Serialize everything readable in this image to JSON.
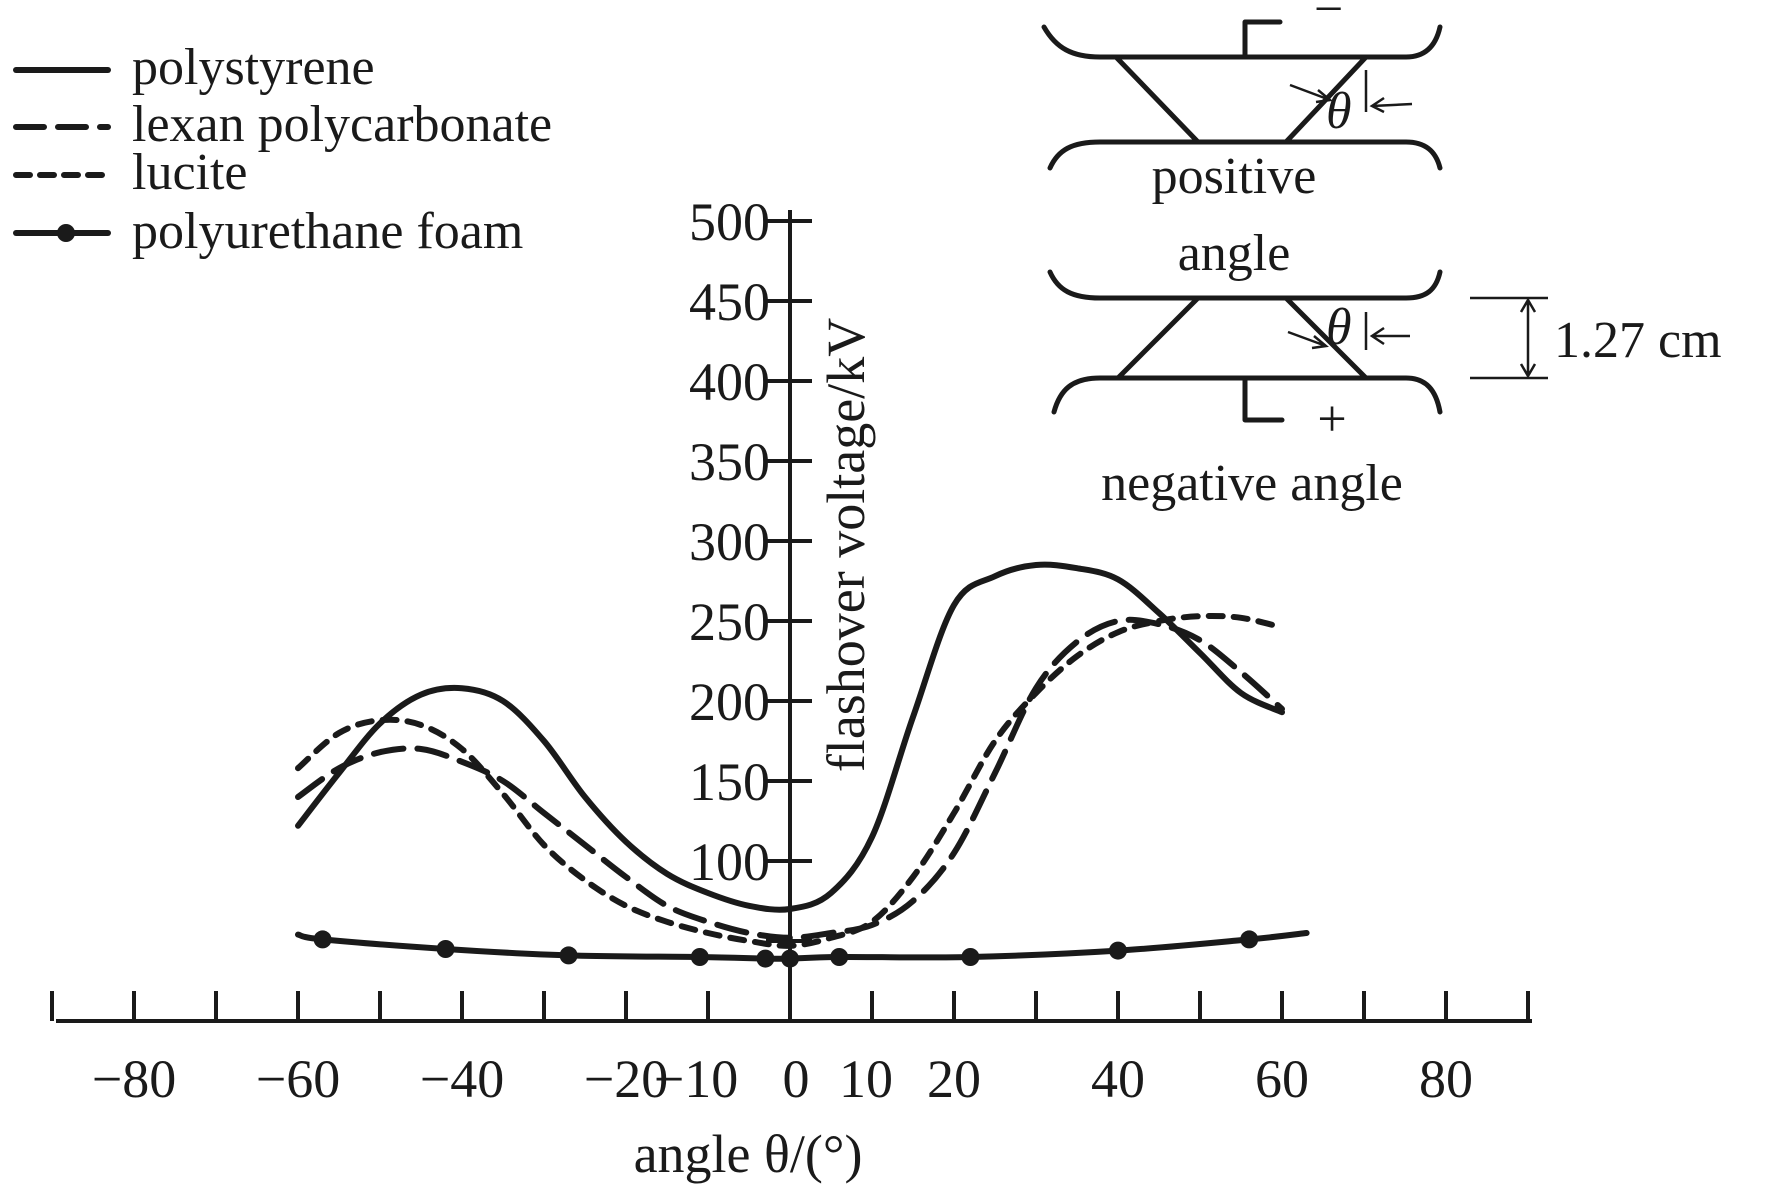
{
  "chart_data": {
    "type": "line",
    "xlabel": "angle θ/(°)",
    "ylabel": "flashover voltage/kV",
    "xlim": [
      -90,
      90
    ],
    "ylim": [
      0,
      500
    ],
    "x_ticks": [
      -90,
      -80,
      -70,
      -60,
      -50,
      -40,
      -30,
      -20,
      -10,
      0,
      10,
      20,
      30,
      40,
      50,
      60,
      70,
      80,
      90
    ],
    "x_tick_labels": [
      {
        "x": -80,
        "label": "−80"
      },
      {
        "x": -60,
        "label": "−60"
      },
      {
        "x": -40,
        "label": "−40"
      },
      {
        "x": -20,
        "label": "−20"
      },
      {
        "x": -10,
        "label": "−10"
      },
      {
        "x": 0,
        "label": "0"
      },
      {
        "x": 10,
        "label": "10"
      },
      {
        "x": 20,
        "label": "20"
      },
      {
        "x": 40,
        "label": "40"
      },
      {
        "x": 60,
        "label": "60"
      },
      {
        "x": 80,
        "label": "80"
      }
    ],
    "y_ticks": [
      50,
      100,
      150,
      200,
      250,
      300,
      350,
      400,
      450,
      500
    ],
    "y_tick_labels": [
      "100",
      "150",
      "200",
      "250",
      "300",
      "350",
      "400",
      "450",
      "500"
    ],
    "legend_position": "top-left",
    "series": [
      {
        "name": "polystyrene",
        "style": "solid",
        "x": [
          -60,
          -55,
          -50,
          -45,
          -40,
          -35,
          -30,
          -25,
          -20,
          -15,
          -10,
          -5,
          0,
          5,
          10,
          15,
          20,
          25,
          30,
          35,
          40,
          45,
          50,
          55,
          60
        ],
        "y": [
          122,
          155,
          186,
          204,
          208,
          200,
          175,
          140,
          112,
          92,
          80,
          72,
          70,
          80,
          115,
          190,
          260,
          278,
          285,
          283,
          276,
          255,
          230,
          205,
          193
        ]
      },
      {
        "name": "lexan polycarbonate",
        "style": "dashed",
        "x": [
          -60,
          -55,
          -50,
          -45,
          -40,
          -35,
          -30,
          -25,
          -20,
          -15,
          -10,
          -5,
          0,
          5,
          10,
          15,
          20,
          25,
          30,
          35,
          40,
          45,
          50,
          55,
          60
        ],
        "y": [
          140,
          158,
          168,
          170,
          162,
          150,
          130,
          110,
          90,
          72,
          62,
          55,
          52,
          55,
          60,
          75,
          105,
          155,
          208,
          237,
          250,
          248,
          238,
          218,
          195
        ]
      },
      {
        "name": "lucite",
        "style": "short-dashed",
        "x": [
          -60,
          -55,
          -50,
          -45,
          -40,
          -35,
          -30,
          -25,
          -20,
          -15,
          -10,
          -5,
          0,
          5,
          10,
          15,
          20,
          25,
          30,
          35,
          40,
          45,
          50,
          55,
          60
        ],
        "y": [
          158,
          180,
          188,
          185,
          170,
          142,
          110,
          88,
          72,
          62,
          55,
          50,
          47,
          52,
          62,
          90,
          130,
          175,
          205,
          228,
          243,
          250,
          253,
          252,
          246
        ]
      },
      {
        "name": "polyurethane foam",
        "style": "solid-dots",
        "x": [
          -60,
          -57,
          -42,
          -27,
          -11,
          -3,
          0,
          6,
          22,
          40,
          56,
          63
        ],
        "y": [
          54,
          51,
          45,
          41,
          40,
          39,
          39,
          40,
          40,
          44,
          51,
          55
        ]
      }
    ],
    "inset": {
      "positive_label": [
        "positive",
        "angle"
      ],
      "negative_label": "negative angle",
      "theta_label": "θ",
      "minus_label": "−",
      "plus_label": "+",
      "dimension_label": "1.27 cm"
    }
  }
}
